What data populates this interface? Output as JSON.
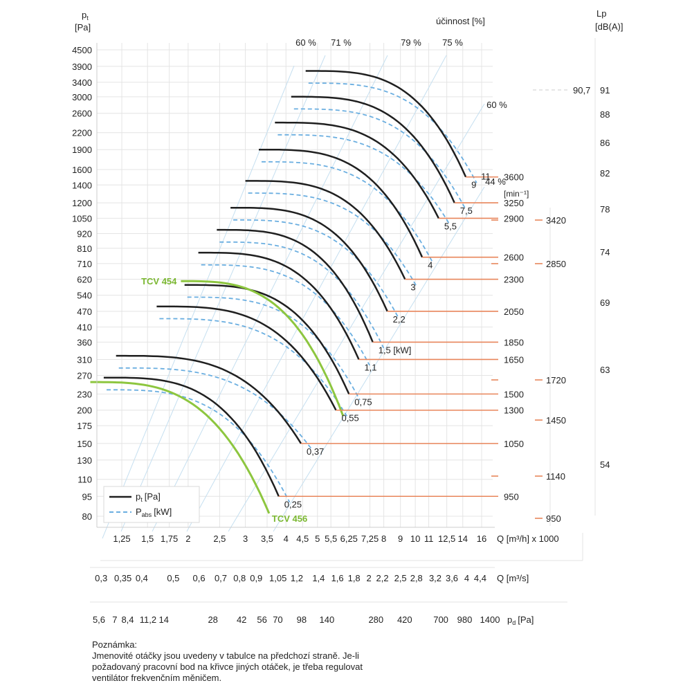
{
  "chart_data": {
    "type": "line",
    "y_axis": {
      "label_symbol": "p",
      "label_sub": "t",
      "label_unit": "[Pa]",
      "scale": "log",
      "ticks": [
        4500,
        3900,
        3400,
        3000,
        2600,
        2200,
        1900,
        1600,
        1400,
        1200,
        1050,
        920,
        810,
        710,
        620,
        540,
        470,
        410,
        360,
        310,
        270,
        230,
        200,
        175,
        150,
        130,
        110,
        95,
        80
      ]
    },
    "x_axis_flow_h": {
      "label": "Q [m³/h] x 1000",
      "scale": "log",
      "ticks": [
        "1,25",
        "1,5",
        "1,75",
        "2",
        "2,5",
        "3",
        "3,5",
        "4",
        "4,5",
        "5",
        "5,5",
        "6,25",
        "7,25",
        "8",
        "9",
        "10",
        "11",
        "12,5",
        "14",
        "16"
      ]
    },
    "x_axis_flow_s": {
      "label": "Q [m³/s]",
      "ticks": [
        "0,3",
        "0,35",
        "0,4",
        "0,5",
        "0,6",
        "0,7",
        "0,8",
        "0,9",
        "1,05",
        "1,2",
        "1,4",
        "1,6",
        "1,8",
        "2",
        "2,2",
        "2,5",
        "2,8",
        "3,2",
        "3,6",
        "4",
        "4,4"
      ]
    },
    "x_axis_dynamic": {
      "label_symbol": "p",
      "label_sub": "d",
      "label_unit": "[Pa]",
      "ticks": [
        "5,6",
        "7",
        "8,4",
        "11,2",
        "14",
        "28",
        "42",
        "56",
        "70",
        "98",
        "140",
        "280",
        "420",
        "700",
        "980",
        "1400"
      ]
    },
    "efficiency_header": "účinnost [%]",
    "efficiency_labels": [
      "60 %",
      "71 %",
      "79 %",
      "75 %",
      "60 %",
      "44 %"
    ],
    "rpm_header": "[min⁻¹]",
    "lp_axis": {
      "label": "Lp",
      "unit": "[dB(A)]",
      "ticks": [
        "91",
        "88",
        "86",
        "82",
        "78",
        "74",
        "69",
        "63",
        "54"
      ],
      "marker_value": "90,7"
    },
    "curves": [
      {
        "rpm": "950",
        "power": "0,25",
        "start_q": 1.1,
        "start_p": 265,
        "end_q": 3.8,
        "end_p": 95
      },
      {
        "rpm": "1050",
        "power": "0,37",
        "start_q": 1.2,
        "start_p": 320,
        "end_q": 4.45,
        "end_p": 150
      },
      {
        "rpm": "1300",
        "power": "0,55",
        "start_q": 1.6,
        "start_p": 490,
        "end_q": 5.7,
        "end_p": 200
      },
      {
        "rpm": "1500",
        "power": "0,75",
        "start_q": 1.95,
        "start_p": 590,
        "end_q": 6.25,
        "end_p": 230
      },
      {
        "rpm": "1650",
        "power": "1,1",
        "start_q": 2.15,
        "start_p": 780,
        "end_q": 6.7,
        "end_p": 310
      },
      {
        "rpm": "1850",
        "power": "1,5 [kW]",
        "start_q": 2.45,
        "start_p": 950,
        "end_q": 7.4,
        "end_p": 360
      },
      {
        "rpm": "2050",
        "power": "2,2",
        "start_q": 2.7,
        "start_p": 1150,
        "end_q": 8.2,
        "end_p": 470
      },
      {
        "rpm": "2300",
        "power": "3",
        "start_q": 3.0,
        "start_p": 1450,
        "end_q": 9.3,
        "end_p": 620
      },
      {
        "rpm": "2600",
        "power": "4",
        "start_q": 3.3,
        "start_p": 1900,
        "end_q": 10.5,
        "end_p": 750
      },
      {
        "rpm": "2900",
        "power": "5,5",
        "start_q": 3.7,
        "start_p": 2400,
        "end_q": 11.8,
        "end_p": 1050
      },
      {
        "rpm": "3250",
        "power": "7,5",
        "start_q": 4.15,
        "start_p": 3000,
        "end_q": 13.2,
        "end_p": 1200
      },
      {
        "rpm": "3600",
        "power": "9",
        "start_q": 4.6,
        "start_p": 3750,
        "end_q": 14.3,
        "end_p": 1500
      }
    ],
    "extra_power_label": "11",
    "highlighted_curves": [
      {
        "name": "TCV 454",
        "start_q": 1.9,
        "start_p": 610,
        "end_q": 6.0,
        "end_p": 190
      },
      {
        "name": "TCV 456",
        "start_q": 1.0,
        "start_p": 255,
        "end_q": 3.55,
        "end_p": 82
      }
    ],
    "rpm_right_labels": [
      "3420",
      "2850",
      "1720",
      "1450",
      "1140",
      "950"
    ],
    "legend": [
      {
        "symbol": "p",
        "sub": "t",
        "unit": "[Pa]",
        "style": "solid"
      },
      {
        "symbol": "P",
        "sub": "abs",
        "unit": "[kW]",
        "style": "dashed"
      }
    ],
    "colors": {
      "pressure_curve": "#1f1f1f",
      "power_curve": "#6aaee0",
      "highlight": "#8dc63f",
      "highlight_text": "#7ab730",
      "rpm_marker": "#e8855a",
      "efficiency_line": "#c5dff0",
      "grid": "#e4e4e4"
    }
  },
  "note": {
    "title": "Poznámka:",
    "lines": [
      "Jmenovité otáčky jsou uvedeny v tabulce na předchozí straně. Je-li",
      "požadovaný pracovní bod na křivce jiných otáček, je třeba regulovat",
      "ventilátor frekvenčním měničem."
    ]
  }
}
